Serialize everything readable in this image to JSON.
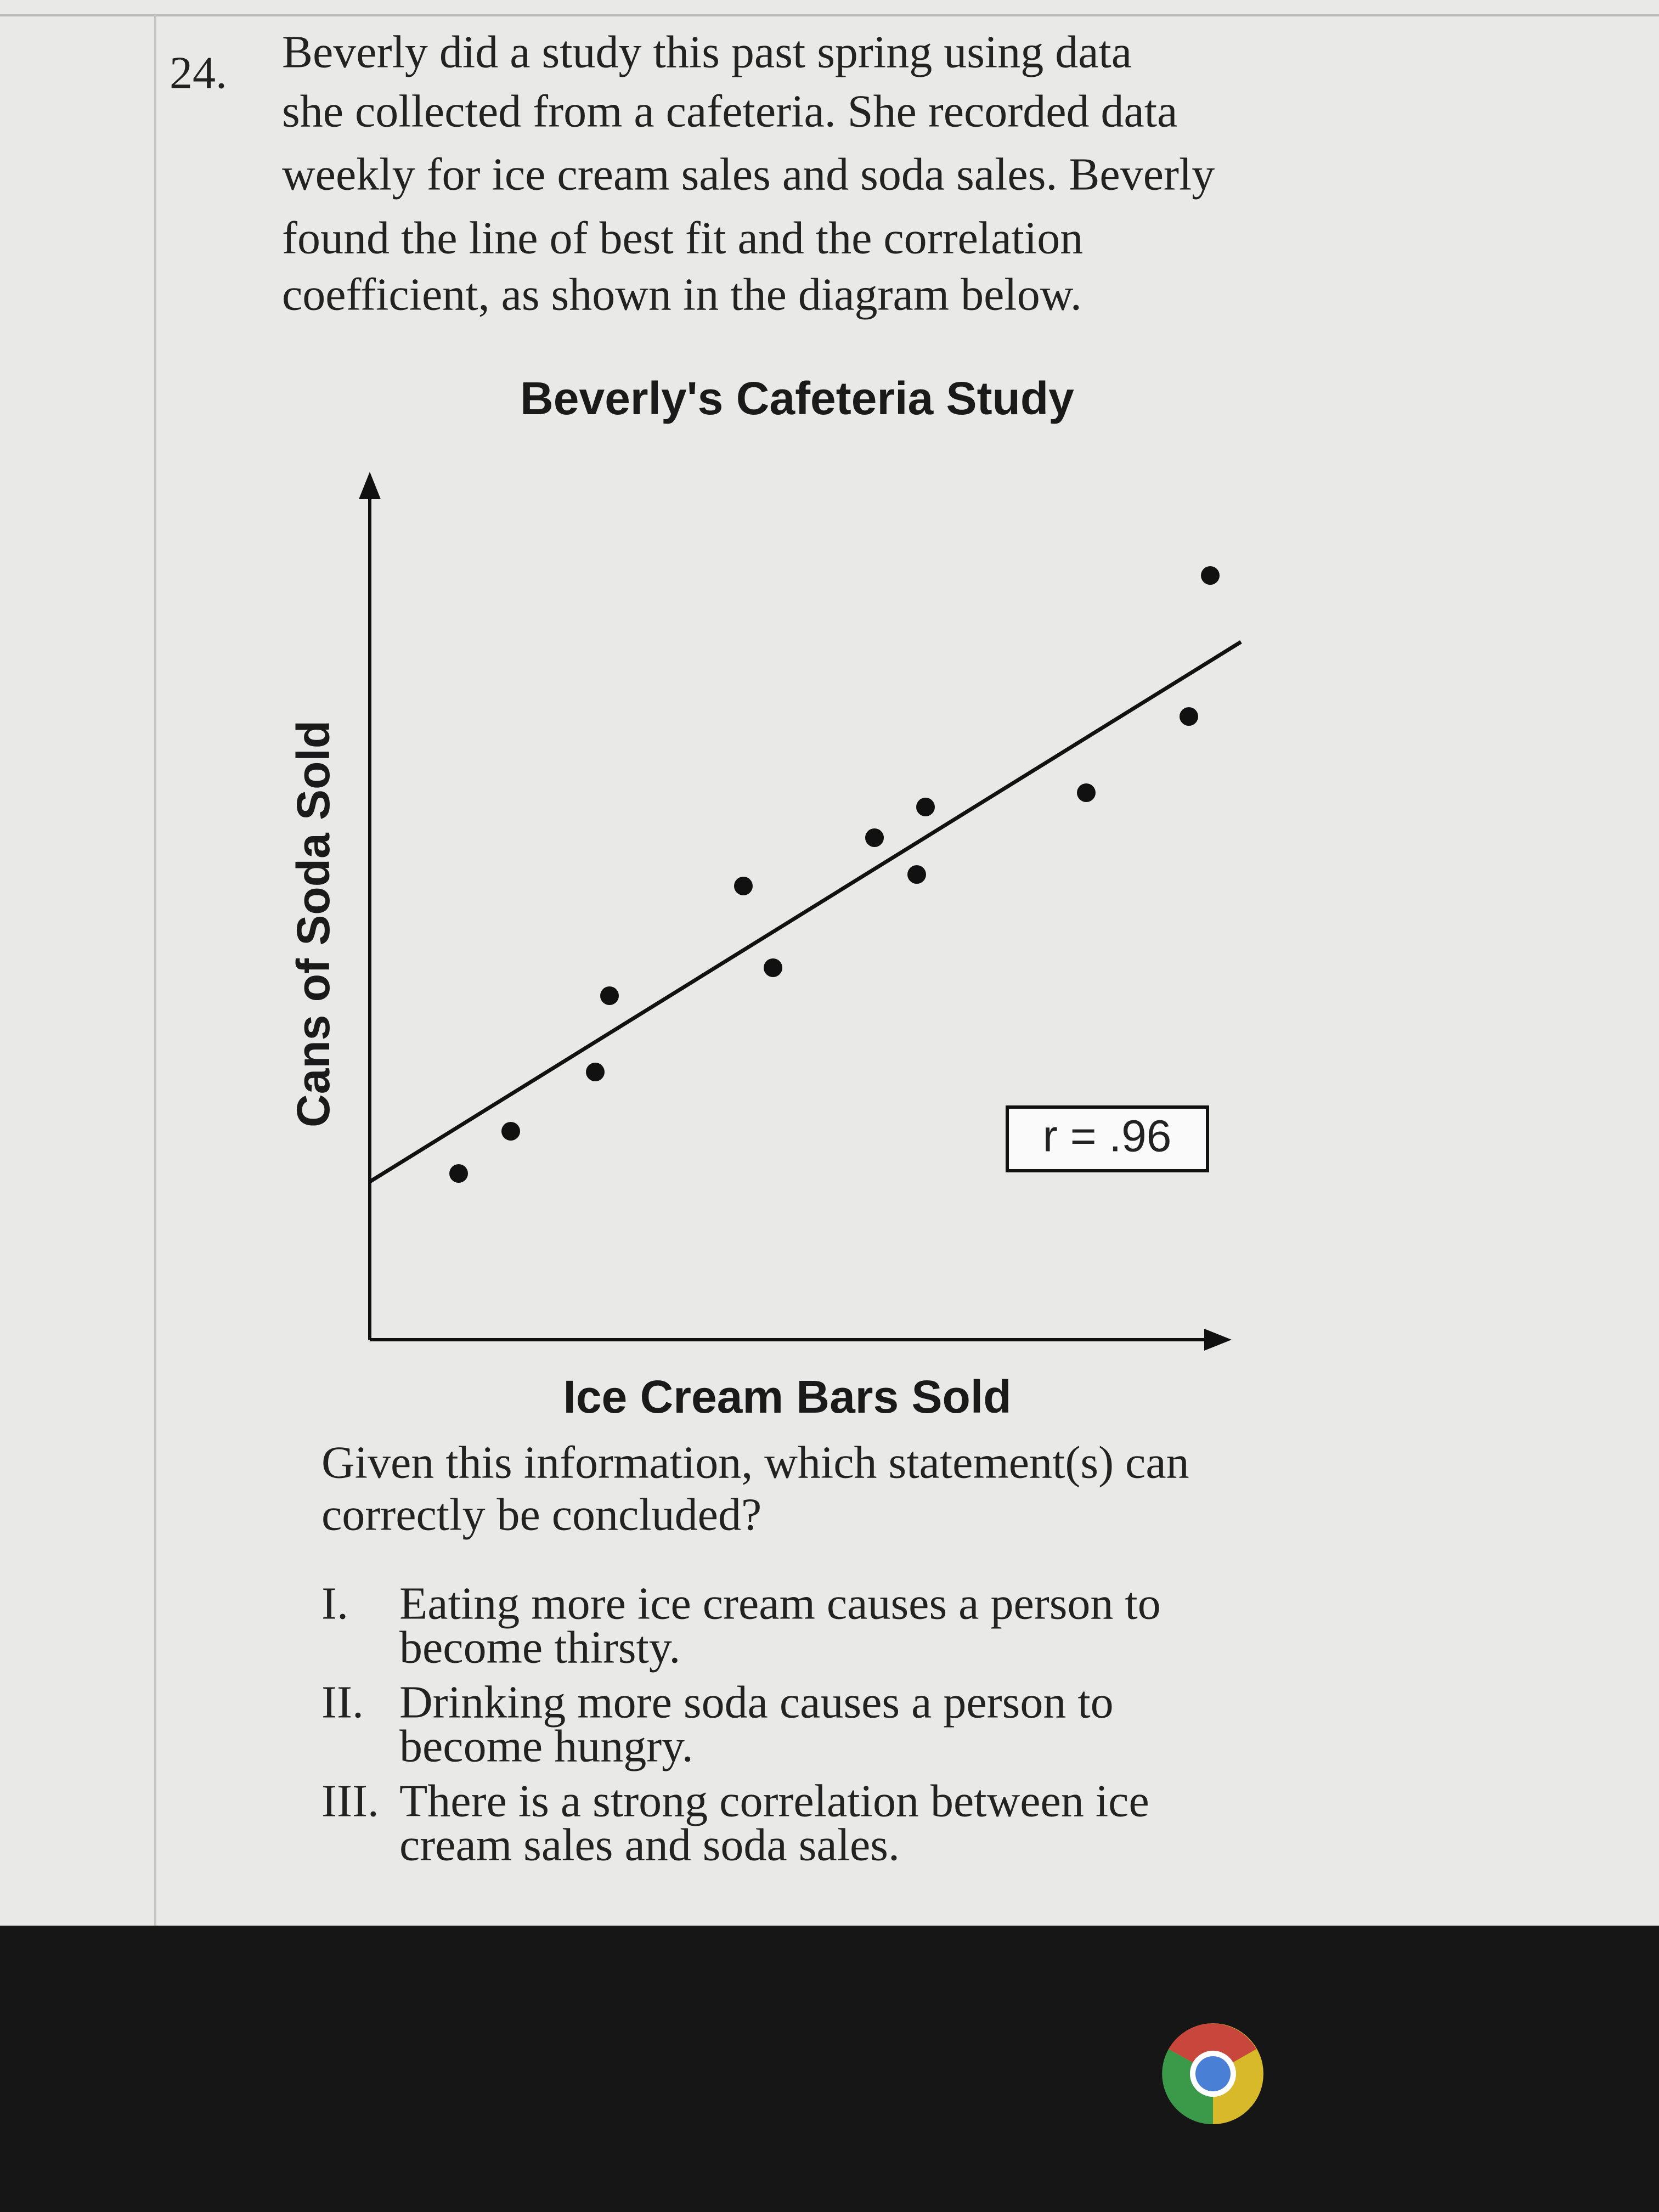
{
  "question": {
    "number": "24.",
    "lines": [
      "Beverly did a study this past spring using data",
      "she collected from a cafeteria. She recorded data",
      "weekly for ice cream sales and soda sales. Beverly",
      "found the line of best fit and the correlation",
      "coefficient, as shown in the diagram below."
    ]
  },
  "figure": {
    "title": "Beverly's Cafeteria Study",
    "y_axis_label": "Cans of Soda Sold",
    "x_axis_label": "Ice Cream Bars Sold",
    "annotation": "r = .96"
  },
  "prompt": {
    "lines": [
      "Given this information, which statement(s) can",
      "correctly be concluded?"
    ]
  },
  "statements": [
    {
      "numeral": "I.",
      "lines": [
        "Eating more ice cream causes a person to",
        "become thirsty."
      ]
    },
    {
      "numeral": "II.",
      "lines": [
        "Drinking more soda causes a person to",
        "become hungry."
      ]
    },
    {
      "numeral": "III.",
      "lines": [
        "There is a strong correlation between ice",
        "cream sales and soda sales."
      ]
    }
  ]
}
